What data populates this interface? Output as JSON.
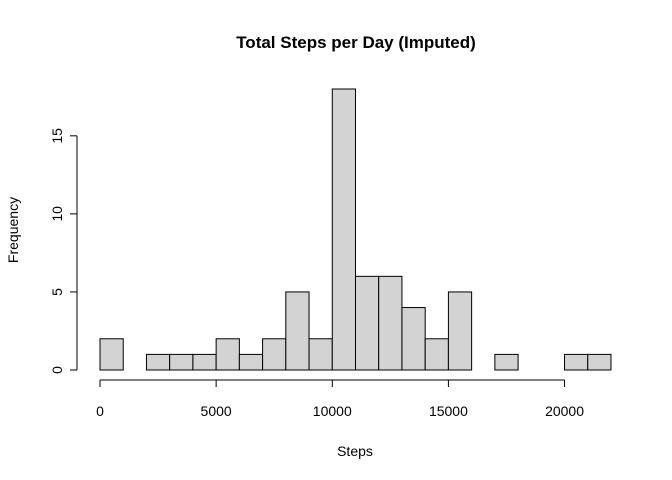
{
  "chart_data": {
    "type": "bar",
    "title": "Total Steps per Day (Imputed)",
    "xlabel": "Steps",
    "ylabel": "Frequency",
    "bin_width": 1000,
    "bins": [
      {
        "start": 0,
        "end": 1000,
        "count": 2
      },
      {
        "start": 1000,
        "end": 2000,
        "count": 0
      },
      {
        "start": 2000,
        "end": 3000,
        "count": 1
      },
      {
        "start": 3000,
        "end": 4000,
        "count": 1
      },
      {
        "start": 4000,
        "end": 5000,
        "count": 1
      },
      {
        "start": 5000,
        "end": 6000,
        "count": 2
      },
      {
        "start": 6000,
        "end": 7000,
        "count": 1
      },
      {
        "start": 7000,
        "end": 8000,
        "count": 2
      },
      {
        "start": 8000,
        "end": 9000,
        "count": 5
      },
      {
        "start": 9000,
        "end": 10000,
        "count": 2
      },
      {
        "start": 10000,
        "end": 11000,
        "count": 18
      },
      {
        "start": 11000,
        "end": 12000,
        "count": 6
      },
      {
        "start": 12000,
        "end": 13000,
        "count": 6
      },
      {
        "start": 13000,
        "end": 14000,
        "count": 4
      },
      {
        "start": 14000,
        "end": 15000,
        "count": 2
      },
      {
        "start": 15000,
        "end": 16000,
        "count": 5
      },
      {
        "start": 16000,
        "end": 17000,
        "count": 0
      },
      {
        "start": 17000,
        "end": 18000,
        "count": 1
      },
      {
        "start": 18000,
        "end": 19000,
        "count": 0
      },
      {
        "start": 19000,
        "end": 20000,
        "count": 0
      },
      {
        "start": 20000,
        "end": 21000,
        "count": 1
      },
      {
        "start": 21000,
        "end": 22000,
        "count": 1
      }
    ],
    "xlim": [
      0,
      22000
    ],
    "ylim": [
      0,
      18
    ],
    "x_ticks": [
      0,
      5000,
      10000,
      15000,
      20000
    ],
    "y_ticks": [
      0,
      5,
      10,
      15
    ],
    "grid": false,
    "legend": "none"
  }
}
